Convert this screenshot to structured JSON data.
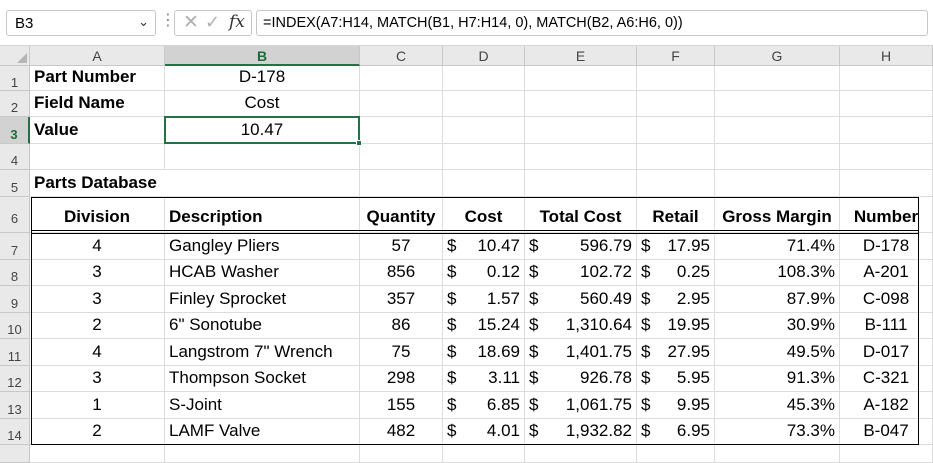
{
  "formula_bar": {
    "name_box": "B3",
    "cancel_glyph": "✕",
    "enter_glyph": "✓",
    "fx_label": "fx",
    "formula": "=INDEX(A7:H14, MATCH(B1, H7:H14, 0), MATCH(B2, A6:H6, 0))"
  },
  "columns": [
    "A",
    "B",
    "C",
    "D",
    "E",
    "F",
    "G",
    "H"
  ],
  "rows": [
    "1",
    "2",
    "3",
    "4",
    "5",
    "6",
    "7",
    "8",
    "9",
    "10",
    "11",
    "12",
    "13",
    "14"
  ],
  "selected_cell": "B3",
  "lookup": {
    "part_label": "Part Number",
    "part_value": "D-178",
    "field_label": "Field Name",
    "field_value": "Cost",
    "value_label": "Value",
    "value_value": "10.47"
  },
  "database_title": "Parts Database",
  "table": {
    "headers": [
      "Division",
      "Description",
      "Quantity",
      "Cost",
      "Total Cost",
      "Retail",
      "Gross Margin",
      "Number"
    ],
    "rows": [
      [
        "4",
        "Gangley Pliers",
        "57",
        "10.47",
        "596.79",
        "17.95",
        "71.4%",
        "D-178"
      ],
      [
        "3",
        "HCAB Washer",
        "856",
        "0.12",
        "102.72",
        "0.25",
        "108.3%",
        "A-201"
      ],
      [
        "3",
        "Finley Sprocket",
        "357",
        "1.57",
        "560.49",
        "2.95",
        "87.9%",
        "C-098"
      ],
      [
        "2",
        "6\" Sonotube",
        "86",
        "15.24",
        "1,310.64",
        "19.95",
        "30.9%",
        "B-111"
      ],
      [
        "4",
        "Langstrom 7\" Wrench",
        "75",
        "18.69",
        "1,401.75",
        "27.95",
        "49.5%",
        "D-017"
      ],
      [
        "3",
        "Thompson Socket",
        "298",
        "3.11",
        "926.78",
        "5.95",
        "91.3%",
        "C-321"
      ],
      [
        "1",
        "S-Joint",
        "155",
        "6.85",
        "1,061.75",
        "9.95",
        "45.3%",
        "A-182"
      ],
      [
        "2",
        "LAMF Valve",
        "482",
        "4.01",
        "1,932.82",
        "6.95",
        "73.3%",
        "B-047"
      ]
    ]
  },
  "currency_symbol": "$",
  "colors": {
    "accent": "#217346",
    "header_bg": "#e9e9e9"
  }
}
